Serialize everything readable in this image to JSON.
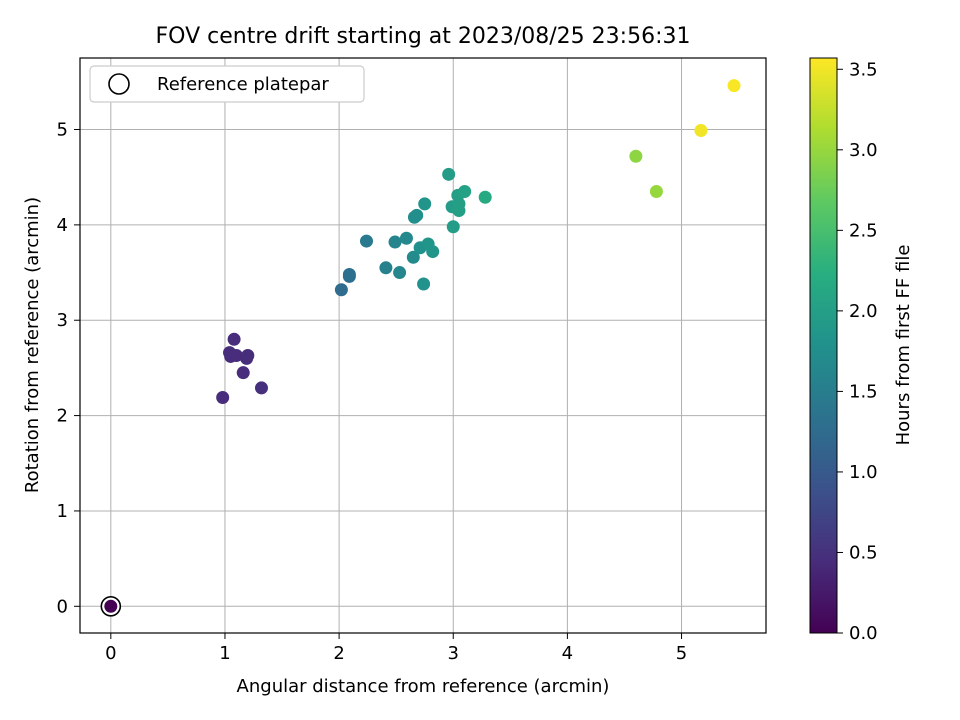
{
  "chart_data": {
    "type": "scatter",
    "title": "FOV centre drift starting at 2023/08/25 23:56:31",
    "xlabel": "Angular distance from reference (arcmin)",
    "ylabel": "Rotation from reference (arcmin)",
    "xlim": [
      -0.27,
      5.74
    ],
    "ylim": [
      -0.28,
      5.75
    ],
    "xticks": [
      0,
      1,
      2,
      3,
      4,
      5
    ],
    "yticks": [
      0,
      1,
      2,
      3,
      4,
      5
    ],
    "grid": true,
    "legend": {
      "placement": "top-left",
      "entries": [
        "Reference platepar"
      ]
    },
    "colorbar": {
      "label": "Hours from first FF file",
      "range": [
        0.0,
        3.57
      ],
      "ticks": [
        "0.0",
        "0.5",
        "1.0",
        "1.5",
        "2.0",
        "2.5",
        "3.0",
        "3.5"
      ],
      "colormap": "viridis"
    },
    "reference_point": {
      "x": 0.0,
      "y": 0.0,
      "hours": 0.0
    },
    "points": [
      {
        "x": 0.98,
        "y": 2.19,
        "hours": 0.45
      },
      {
        "x": 1.04,
        "y": 2.66,
        "hours": 0.45
      },
      {
        "x": 1.05,
        "y": 2.62,
        "hours": 0.45
      },
      {
        "x": 1.08,
        "y": 2.8,
        "hours": 0.45
      },
      {
        "x": 1.1,
        "y": 2.63,
        "hours": 0.45
      },
      {
        "x": 1.16,
        "y": 2.45,
        "hours": 0.45
      },
      {
        "x": 1.19,
        "y": 2.6,
        "hours": 0.46
      },
      {
        "x": 1.2,
        "y": 2.63,
        "hours": 0.46
      },
      {
        "x": 1.32,
        "y": 2.29,
        "hours": 0.47
      },
      {
        "x": 2.02,
        "y": 3.32,
        "hours": 1.25
      },
      {
        "x": 2.09,
        "y": 3.46,
        "hours": 1.3
      },
      {
        "x": 2.09,
        "y": 3.48,
        "hours": 1.3
      },
      {
        "x": 2.24,
        "y": 3.83,
        "hours": 1.45
      },
      {
        "x": 2.41,
        "y": 3.55,
        "hours": 1.55
      },
      {
        "x": 2.49,
        "y": 3.82,
        "hours": 1.6
      },
      {
        "x": 2.53,
        "y": 3.5,
        "hours": 1.62
      },
      {
        "x": 2.59,
        "y": 3.86,
        "hours": 1.65
      },
      {
        "x": 2.65,
        "y": 3.66,
        "hours": 1.7
      },
      {
        "x": 2.66,
        "y": 4.08,
        "hours": 1.75
      },
      {
        "x": 2.68,
        "y": 4.1,
        "hours": 1.75
      },
      {
        "x": 2.71,
        "y": 3.76,
        "hours": 1.78
      },
      {
        "x": 2.74,
        "y": 3.38,
        "hours": 1.8
      },
      {
        "x": 2.75,
        "y": 4.22,
        "hours": 1.85
      },
      {
        "x": 2.78,
        "y": 3.8,
        "hours": 1.85
      },
      {
        "x": 2.82,
        "y": 3.72,
        "hours": 1.85
      },
      {
        "x": 2.96,
        "y": 4.53,
        "hours": 1.95
      },
      {
        "x": 2.99,
        "y": 4.19,
        "hours": 1.95
      },
      {
        "x": 3.0,
        "y": 3.98,
        "hours": 1.95
      },
      {
        "x": 3.04,
        "y": 4.31,
        "hours": 2.0
      },
      {
        "x": 3.05,
        "y": 4.15,
        "hours": 2.0
      },
      {
        "x": 3.05,
        "y": 4.22,
        "hours": 2.0
      },
      {
        "x": 3.1,
        "y": 4.35,
        "hours": 2.05
      },
      {
        "x": 3.28,
        "y": 4.29,
        "hours": 2.15
      },
      {
        "x": 4.6,
        "y": 4.72,
        "hours": 2.95
      },
      {
        "x": 4.78,
        "y": 4.35,
        "hours": 3.0
      },
      {
        "x": 5.17,
        "y": 4.99,
        "hours": 3.5
      },
      {
        "x": 5.46,
        "y": 5.46,
        "hours": 3.55
      }
    ]
  }
}
